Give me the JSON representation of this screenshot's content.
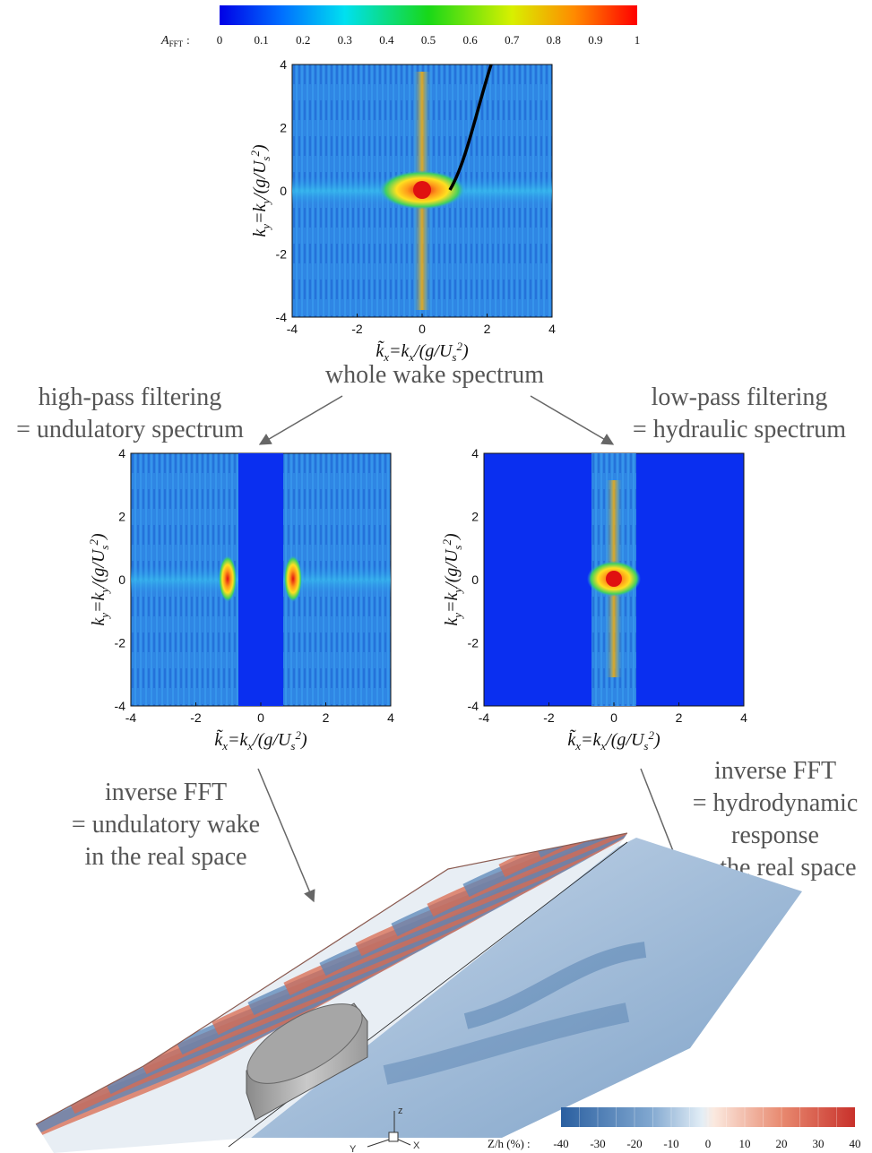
{
  "colorbar_top": {
    "label": "A",
    "label_sub": "FFT",
    "label_sep": ":",
    "ticks": [
      "0",
      "0.1",
      "0.2",
      "0.3",
      "0.4",
      "0.5",
      "0.6",
      "0.7",
      "0.8",
      "0.9",
      "1"
    ],
    "range": [
      0,
      1
    ]
  },
  "colorbar_bottom": {
    "label": "Z/h (%)",
    "label_sep": ":",
    "ticks": [
      "-40",
      "-30",
      "-20",
      "-10",
      "0",
      "10",
      "20",
      "30",
      "40"
    ],
    "range": [
      -40,
      40
    ]
  },
  "axes": {
    "x_ticks": [
      "-4",
      "-2",
      "0",
      "2",
      "4"
    ],
    "y_ticks": [
      "4",
      "2",
      "0",
      "-2",
      "-4"
    ],
    "x_label": "k̃x=kx/(g/Us²)",
    "y_label": "ky=ky/(g/Us²)"
  },
  "captions": {
    "whole": "whole wake spectrum",
    "high_pass_1": "high-pass filtering",
    "high_pass_2": "= undulatory spectrum",
    "low_pass_1": "low-pass filtering",
    "low_pass_2": "= hydraulic spectrum",
    "inv_left_1": "inverse FFT",
    "inv_left_2": "= undulatory wake",
    "inv_left_3": "in the real space",
    "inv_right_1": "inverse FFT",
    "inv_right_2": "= hydrodynamic",
    "inv_right_3": "response",
    "inv_right_4": "in the real space"
  },
  "axis3d": {
    "z": "z",
    "y": "Y",
    "x": "X"
  },
  "colors": {
    "spectrum_bg": "#1f6fe0",
    "spectrum_mid": "#2a9ae8",
    "filtered_blue": "#0a2ff0",
    "peak_red": "#e01010",
    "peak_orange": "#ff9a1a",
    "peak_yellow": "#ffee20",
    "arrow": "#666666",
    "wave_red": "#d9694f",
    "wave_blue": "#5a86b8"
  }
}
